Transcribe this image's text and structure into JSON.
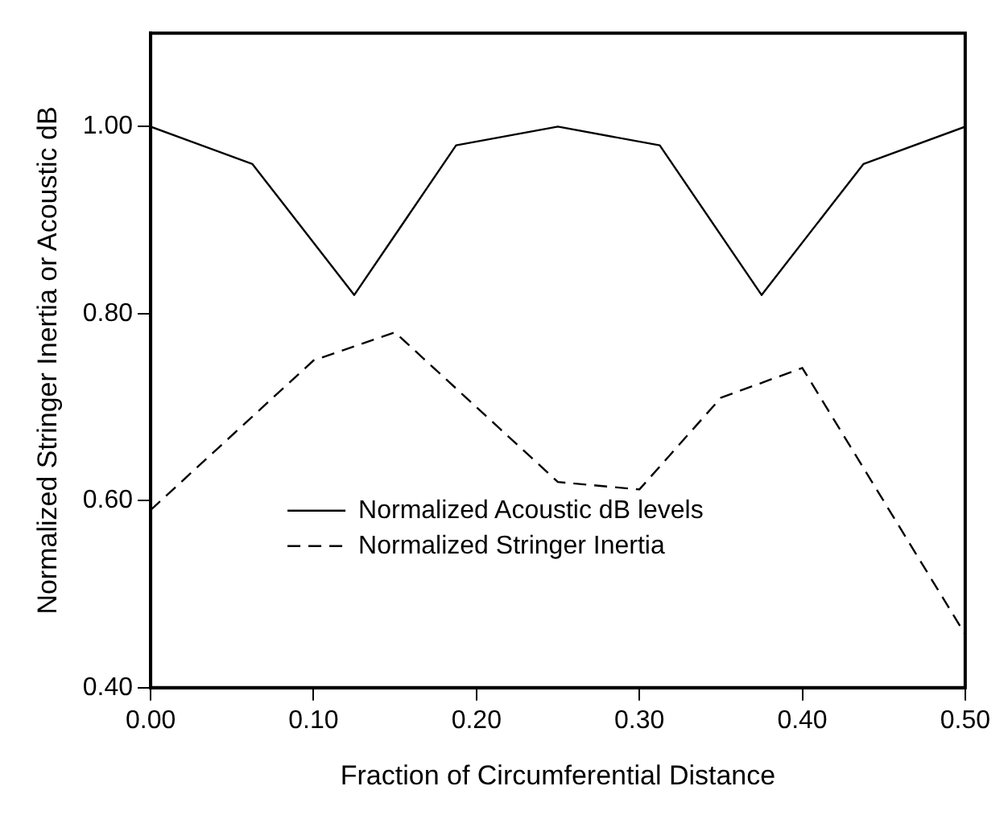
{
  "chart_data": {
    "type": "line",
    "xlabel": "Fraction of Circumferential Distance",
    "ylabel": "Normalized Stringer Inertia or Acoustic dB",
    "xlim": [
      0,
      0.5
    ],
    "xticks": [
      {
        "value": 0,
        "label": "0.00"
      },
      {
        "value": 0.1,
        "label": "0.10"
      },
      {
        "value": 0.2,
        "label": "0.20"
      },
      {
        "value": 0.3,
        "label": "0.30"
      },
      {
        "value": 0.4,
        "label": "0.40"
      },
      {
        "value": 0.5,
        "label": "0.50"
      }
    ],
    "ylim": [
      0.4,
      1.1
    ],
    "yticks": [
      {
        "value": 0.4,
        "label": "0.40"
      },
      {
        "value": 0.6,
        "label": "0.60"
      },
      {
        "value": 0.8,
        "label": "0.80"
      },
      {
        "value": 1.0,
        "label": "1.00"
      }
    ],
    "grid": false,
    "legend": "bottom left",
    "marker": "none",
    "series": [
      {
        "name": "Normalized Acoustic dB levels",
        "color": "#000000",
        "line_style": "solid",
        "x": [
          0,
          0.0625,
          0.125,
          0.1875,
          0.25,
          0.3125,
          0.375,
          0.4375,
          0.5
        ],
        "values": [
          1.0,
          0.96,
          0.82,
          0.98,
          1.0,
          0.98,
          0.82,
          0.96,
          1.0
        ]
      },
      {
        "name": "Normalized Stringer Inertia",
        "color": "#000000",
        "line_style": "dashed",
        "x": [
          0,
          0.1,
          0.125,
          0.15,
          0.25,
          0.3,
          0.35,
          0.4,
          0.5
        ],
        "values": [
          0.59,
          0.75,
          0.765,
          0.78,
          0.62,
          0.612,
          0.71,
          0.742,
          0.457
        ]
      }
    ]
  }
}
